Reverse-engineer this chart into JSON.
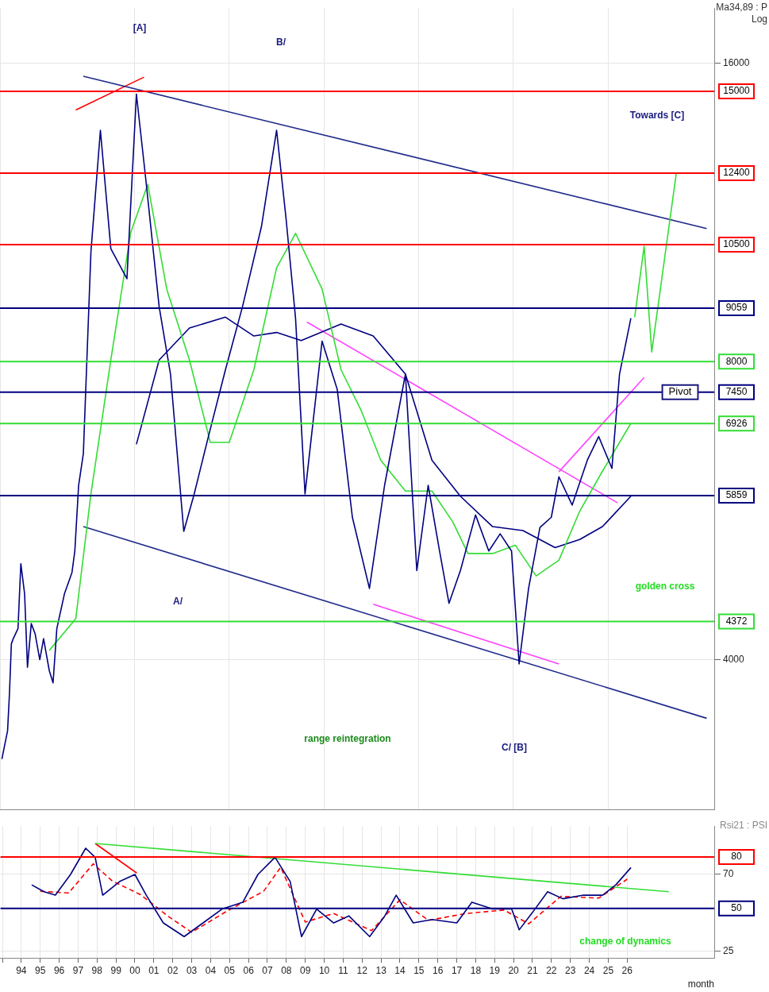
{
  "chart_data": [
    {
      "type": "line",
      "log": true,
      "grid": true,
      "xlim": [
        1992.9,
        2030.6
      ],
      "ylim": [
        2820,
        18200
      ],
      "yticks": [
        4000,
        16000
      ],
      "tick_labels": "y",
      "series": [
        {
          "color": "#000080",
          "x": [
            1993.0,
            1993.3,
            1993.4,
            1993.5,
            1993.6,
            1993.85,
            1994.0,
            1994.2,
            1994.35,
            1994.55,
            1994.75,
            1995.0,
            1995.2,
            1995.5,
            1995.7,
            1995.9,
            1996.3,
            1996.7,
            1996.85,
            1997.05,
            1997.3,
            1997.7,
            1998.2,
            1998.75,
            1999.6,
            2000.1,
            2000.6,
            2001.3,
            2001.9,
            2002.6,
            2003.15,
            2003.9,
            2004.8,
            2005.7,
            2006.7,
            2007.5,
            2008.0,
            2008.5,
            2009.0,
            2009.9,
            2010.7,
            2011.5,
            2012.4,
            2013.2,
            2014.3,
            2014.9,
            2015.5,
            2016.1,
            2016.6,
            2017.2,
            2018.0,
            2018.7,
            2019.3,
            2019.9,
            2020.3,
            2020.8,
            2021.4,
            2022.0,
            2022.4,
            2023.1,
            2023.9,
            2024.5,
            2025.2,
            2025.6,
            2026.2
          ],
          "values": [
            3175,
            3390,
            3700,
            4150,
            4200,
            4300,
            5000,
            4660,
            3930,
            4350,
            4250,
            4000,
            4200,
            3900,
            3790,
            4300,
            4660,
            4900,
            5150,
            6000,
            6460,
            10330,
            13700,
            10400,
            9700,
            14900,
            12200,
            9090,
            7770,
            5390,
            5880,
            6720,
            7850,
            9090,
            10950,
            13700,
            11150,
            8850,
            5880,
            8390,
            7500,
            5570,
            4720,
            6000,
            7770,
            4920,
            6000,
            5150,
            4560,
            4920,
            5600,
            5150,
            5360,
            5150,
            3960,
            4720,
            5440,
            5570,
            6120,
            5730,
            6360,
            6720,
            6240,
            7770,
            8850
          ]
        },
        {
          "color": "#33dd33",
          "x": [
            1995.5,
            1996.9,
            1997.7,
            1998.75,
            1999.8,
            2000.7,
            2001.7,
            2002.9,
            2004.0,
            2005.0,
            2006.3,
            2007.5,
            2008.5,
            2009.9,
            2010.9,
            2011.95,
            2013.0,
            2014.3,
            2015.7,
            2016.8,
            2017.6,
            2018.9,
            2020.1,
            2021.2,
            2022.4,
            2023.5,
            2024.7,
            2026.2
          ],
          "values": [
            4087,
            4400,
            5880,
            8030,
            10800,
            12080,
            9470,
            8030,
            6630,
            6630,
            7850,
            9950,
            10780,
            9470,
            7850,
            7150,
            6360,
            5920,
            5920,
            5510,
            5120,
            5120,
            5220,
            4860,
            5040,
            5650,
            6200,
            6930
          ]
        },
        {
          "color": "#000080",
          "x": [
            2000.1,
            2001.3,
            2002.9,
            2004.8,
            2006.3,
            2007.5,
            2008.8,
            2010.9,
            2012.6,
            2014.3,
            2015.7,
            2017.2,
            2018.9,
            2020.5,
            2022.2,
            2023.5,
            2024.7,
            2026.2
          ],
          "values": [
            6600,
            8030,
            8650,
            8870,
            8490,
            8560,
            8400,
            8730,
            8490,
            7770,
            6360,
            5850,
            5450,
            5400,
            5190,
            5290,
            5450,
            5850
          ]
        },
        {
          "color": "#33dd33",
          "x": [
            2026.4,
            2026.9,
            2027.3,
            2028.6
          ],
          "values": [
            8870,
            10460,
            8180,
            12410
          ]
        },
        {
          "color": "#1f2a8a",
          "x": [
            1997.3,
            2030.2
          ],
          "values": [
            15530,
            10900
          ]
        },
        {
          "color": "#1f2a8a",
          "x": [
            1997.3,
            2030.2
          ],
          "values": [
            5450,
            3490
          ]
        },
        {
          "color": "#ff44ff",
          "x": [
            2009.1,
            2025.5
          ],
          "values": [
            8770,
            5760
          ]
        },
        {
          "color": "#ff44ff",
          "x": [
            2012.6,
            2022.4
          ],
          "values": [
            4550,
            3960
          ]
        },
        {
          "color": "#ff44ff",
          "x": [
            2022.4,
            2026.9
          ],
          "values": [
            6190,
            7710
          ]
        },
        {
          "color": "#ff0000",
          "x": [
            1996.9,
            2000.5
          ],
          "values": [
            14360,
            15500
          ]
        }
      ],
      "ref_lines": [
        {
          "axis": "y",
          "value": 15000,
          "label": "15000",
          "color": "#ff0000"
        },
        {
          "axis": "y",
          "value": 12400,
          "label": "12400",
          "color": "#ff0000"
        },
        {
          "axis": "y",
          "value": 10500,
          "label": "10500",
          "color": "#ff0000"
        },
        {
          "axis": "y",
          "value": 9059,
          "label": "9059",
          "color": "#000080"
        },
        {
          "axis": "y",
          "value": 8000,
          "label": "8000",
          "color": "#33dd33"
        },
        {
          "axis": "y",
          "value": 7450,
          "label": "7450",
          "color": "#000080"
        },
        {
          "axis": "y",
          "value": 6926,
          "label": "6926",
          "color": "#33dd33"
        },
        {
          "axis": "y",
          "value": 5859,
          "label": "5859",
          "color": "#000080"
        },
        {
          "axis": "y",
          "value": 4372,
          "label": "4372",
          "color": "#33dd33"
        }
      ],
      "annotations": [
        "Ma34,89 : P",
        "Log",
        "[A]",
        "B/",
        "A/",
        "C/ [B]",
        "Towards [C]",
        "range reintegration",
        "golden cross",
        {
          "text": "Pivot",
          "x": 2028.8,
          "y": 7450
        }
      ]
    },
    {
      "type": "line",
      "xlim": [
        1992.9,
        2030.6
      ],
      "ylim": [
        21,
        98
      ],
      "yticks": [
        25,
        70
      ],
      "xlabel": "month",
      "grid": true,
      "xticks": [
        {
          "value": 1993,
          "label": null
        },
        {
          "value": 1994,
          "label": "94"
        },
        {
          "value": 1995,
          "label": "95"
        },
        {
          "value": 1996,
          "label": "96"
        },
        {
          "value": 1997,
          "label": "97"
        },
        {
          "value": 1998,
          "label": "98"
        },
        {
          "value": 1999,
          "label": "99"
        },
        {
          "value": 2000,
          "label": "00"
        },
        {
          "value": 2001,
          "label": "01"
        },
        {
          "value": 2002,
          "label": "02"
        },
        {
          "value": 2003,
          "label": "03"
        },
        {
          "value": 2004,
          "label": "04"
        },
        {
          "value": 2005,
          "label": "05"
        },
        {
          "value": 2006,
          "label": "06"
        },
        {
          "value": 2007,
          "label": "07"
        },
        {
          "value": 2008,
          "label": "08"
        },
        {
          "value": 2009,
          "label": "09"
        },
        {
          "value": 2010,
          "label": "10"
        },
        {
          "value": 2011,
          "label": "11"
        },
        {
          "value": 2012,
          "label": "12"
        },
        {
          "value": 2013,
          "label": "13"
        },
        {
          "value": 2014,
          "label": "14"
        },
        {
          "value": 2015,
          "label": "15"
        },
        {
          "value": 2016,
          "label": "16"
        },
        {
          "value": 2017,
          "label": "17"
        },
        {
          "value": 2018,
          "label": "18"
        },
        {
          "value": 2019,
          "label": "19"
        },
        {
          "value": 2020,
          "label": "20"
        },
        {
          "value": 2021,
          "label": "21"
        },
        {
          "value": 2022,
          "label": "22"
        },
        {
          "value": 2023,
          "label": "23"
        },
        {
          "value": 2024,
          "label": "24"
        },
        {
          "value": 2025,
          "label": "25"
        },
        {
          "value": 2026,
          "label": "26"
        }
      ],
      "series": [
        {
          "color": "#000080",
          "x": [
            1994.55,
            1995.2,
            1995.8,
            1996.6,
            1997.4,
            1997.9,
            1998.3,
            1999.2,
            2000.0,
            2000.6,
            2001.5,
            2002.6,
            2003.6,
            2004.6,
            2005.7,
            2006.5,
            2007.4,
            2008.2,
            2008.8,
            2009.6,
            2010.5,
            2011.3,
            2012.4,
            2013.2,
            2013.8,
            2014.7,
            2015.7,
            2017.0,
            2017.8,
            2018.9,
            2019.9,
            2020.3,
            2021.0,
            2021.8,
            2022.6,
            2023.7,
            2024.7,
            2025.4,
            2026.2
          ],
          "values": [
            63.7,
            59.7,
            57.7,
            69.8,
            85.1,
            79.8,
            57.7,
            65.7,
            69.8,
            57.7,
            41.5,
            33.5,
            41.5,
            49.6,
            53.6,
            69.8,
            79.8,
            65.7,
            33.5,
            49.6,
            41.5,
            45.6,
            33.5,
            45.6,
            57.7,
            41.5,
            43.5,
            41.5,
            53.6,
            49.6,
            49.6,
            37.5,
            47.6,
            59.7,
            55.6,
            57.7,
            57.7,
            63.7,
            73.8
          ]
        },
        {
          "color": "#ff0000",
          "line_style": "dashed",
          "x": [
            1995.0,
            1996.5,
            1997.8,
            1998.8,
            2000.3,
            2001.8,
            2003.0,
            2004.8,
            2006.8,
            2007.7,
            2009.0,
            2010.5,
            2012.5,
            2014.0,
            2015.5,
            2017.5,
            2019.5,
            2020.8,
            2022.5,
            2024.5,
            2026.0
          ],
          "values": [
            60,
            59,
            76,
            66,
            58,
            45,
            36,
            48,
            60,
            74,
            42,
            47,
            37,
            55,
            43,
            47,
            49,
            41,
            57,
            56,
            67
          ]
        },
        {
          "color": "#33dd33",
          "x": [
            1997.9,
            2028.2
          ],
          "values": [
            87.9,
            59.7
          ]
        },
        {
          "color": "#ff0000",
          "x": [
            1997.9,
            2000.1
          ],
          "values": [
            87.9,
            70.6
          ]
        }
      ],
      "ref_lines": [
        {
          "axis": "y",
          "value": 80,
          "label": "80",
          "color": "#ff0000"
        },
        {
          "axis": "y",
          "value": 50,
          "label": "50",
          "color": "#000080"
        }
      ],
      "annotations": [
        "Rsi21 : PSI",
        "change of dynamics"
      ]
    }
  ]
}
